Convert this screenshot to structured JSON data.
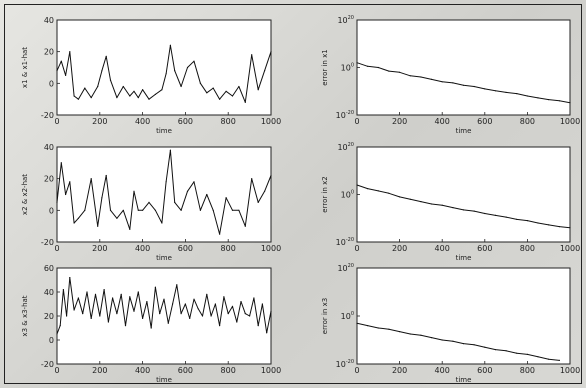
{
  "chart_data": [
    {
      "id": "x1",
      "type": "line",
      "xlabel": "time",
      "ylabel": "x1 & x1-hat",
      "xlim": [
        0,
        1000
      ],
      "ylim": [
        -20,
        40
      ],
      "xticks": [
        "0",
        "200",
        "400",
        "600",
        "800",
        "1000"
      ],
      "yticks": [
        "-20",
        "0",
        "20",
        "40"
      ],
      "x": [
        0,
        20,
        40,
        60,
        80,
        100,
        130,
        160,
        190,
        210,
        230,
        250,
        280,
        310,
        340,
        360,
        380,
        400,
        430,
        460,
        490,
        510,
        530,
        550,
        580,
        610,
        640,
        670,
        700,
        730,
        760,
        790,
        820,
        850,
        880,
        910,
        940,
        970,
        1000
      ],
      "values": [
        8,
        14,
        5,
        20,
        -8,
        -10,
        -3,
        -9,
        -2,
        8,
        17,
        2,
        -9,
        -2,
        -8,
        -5,
        -9,
        -4,
        -10,
        -7,
        -4,
        6,
        24,
        8,
        -2,
        10,
        14,
        0,
        -6,
        -3,
        -10,
        -5,
        -8,
        -2,
        -12,
        18,
        -4,
        8,
        20
      ]
    },
    {
      "id": "x2",
      "type": "line",
      "xlabel": "time",
      "ylabel": "x2 & x2-hat",
      "xlim": [
        0,
        1000
      ],
      "ylim": [
        -20,
        40
      ],
      "xticks": [
        "0",
        "200",
        "400",
        "600",
        "800",
        "1000"
      ],
      "yticks": [
        "-20",
        "0",
        "20",
        "40"
      ],
      "x": [
        0,
        20,
        40,
        60,
        80,
        100,
        130,
        160,
        190,
        210,
        230,
        250,
        280,
        310,
        340,
        360,
        380,
        400,
        430,
        460,
        490,
        510,
        530,
        550,
        580,
        610,
        640,
        670,
        700,
        730,
        760,
        790,
        820,
        850,
        880,
        910,
        940,
        970,
        1000
      ],
      "values": [
        5,
        30,
        10,
        18,
        -8,
        -5,
        0,
        20,
        -10,
        8,
        22,
        0,
        -5,
        0,
        -12,
        12,
        0,
        0,
        5,
        0,
        -8,
        18,
        38,
        5,
        0,
        12,
        18,
        0,
        10,
        0,
        -15,
        8,
        0,
        0,
        -10,
        20,
        5,
        12,
        22
      ]
    },
    {
      "id": "x3",
      "type": "line",
      "xlabel": "time",
      "ylabel": "x3 & x3-hat",
      "xlim": [
        0,
        1000
      ],
      "ylim": [
        -20,
        60
      ],
      "xticks": [
        "0",
        "200",
        "400",
        "600",
        "800",
        "1000"
      ],
      "yticks": [
        "-20",
        "0",
        "20",
        "40",
        "60"
      ],
      "x": [
        0,
        15,
        30,
        45,
        60,
        80,
        100,
        120,
        140,
        160,
        180,
        200,
        220,
        240,
        260,
        280,
        300,
        320,
        340,
        360,
        380,
        400,
        420,
        440,
        460,
        480,
        500,
        520,
        540,
        560,
        580,
        600,
        620,
        640,
        660,
        680,
        700,
        720,
        740,
        760,
        780,
        800,
        820,
        840,
        860,
        880,
        900,
        920,
        940,
        960,
        980,
        1000
      ],
      "values": [
        5,
        12,
        42,
        20,
        52,
        25,
        35,
        22,
        40,
        18,
        38,
        20,
        42,
        15,
        35,
        22,
        38,
        12,
        36,
        24,
        40,
        18,
        32,
        10,
        44,
        22,
        34,
        14,
        30,
        46,
        22,
        30,
        18,
        34,
        26,
        20,
        38,
        20,
        30,
        12,
        36,
        22,
        28,
        15,
        32,
        22,
        20,
        35,
        12,
        30,
        6,
        24
      ]
    },
    {
      "id": "e1",
      "type": "line",
      "xlabel": "time",
      "ylabel": "error in x1",
      "xlim": [
        0,
        1000
      ],
      "ylog": true,
      "ylim_exp": [
        -20,
        20
      ],
      "xticks": [
        "0",
        "200",
        "400",
        "600",
        "800",
        "1000"
      ],
      "yticks": [
        {
          "base": "10",
          "exp": "-20"
        },
        {
          "base": "10",
          "exp": "0"
        },
        {
          "base": "10",
          "exp": "20"
        }
      ],
      "x": [
        0,
        50,
        100,
        150,
        200,
        250,
        300,
        350,
        400,
        450,
        500,
        550,
        600,
        650,
        700,
        750,
        800,
        850,
        900,
        950,
        1000
      ],
      "values": [
        2,
        0.5,
        0,
        -1.5,
        -2,
        -3.5,
        -4,
        -5,
        -6,
        -6.5,
        -7.5,
        -8,
        -9,
        -9.8,
        -10.5,
        -11,
        -12,
        -12.8,
        -13.5,
        -14,
        -14.8
      ]
    },
    {
      "id": "e2",
      "type": "line",
      "xlabel": "time",
      "ylabel": "error in x2",
      "xlim": [
        0,
        1000
      ],
      "ylog": true,
      "ylim_exp": [
        -20,
        20
      ],
      "xticks": [
        "0",
        "200",
        "400",
        "600",
        "800",
        "1000"
      ],
      "yticks": [
        {
          "base": "10",
          "exp": "-20"
        },
        {
          "base": "10",
          "exp": "0"
        },
        {
          "base": "10",
          "exp": "20"
        }
      ],
      "x": [
        0,
        50,
        100,
        150,
        200,
        250,
        300,
        350,
        400,
        450,
        500,
        550,
        600,
        650,
        700,
        750,
        800,
        850,
        900,
        950,
        1000
      ],
      "values": [
        4,
        2.5,
        1.5,
        0.5,
        -1,
        -2,
        -3,
        -4,
        -4.5,
        -5.5,
        -6.5,
        -7,
        -8,
        -8.8,
        -9.5,
        -10.5,
        -11,
        -12,
        -12.8,
        -13.5,
        -14
      ]
    },
    {
      "id": "e3",
      "type": "line",
      "xlabel": "time",
      "ylabel": "error in x3",
      "xlim": [
        0,
        1000
      ],
      "ylog": true,
      "ylim_exp": [
        -20,
        20
      ],
      "xticks": [
        "0",
        "200",
        "400",
        "600",
        "800",
        "1000"
      ],
      "yticks": [
        {
          "base": "10",
          "exp": "-20"
        },
        {
          "base": "10",
          "exp": "0"
        },
        {
          "base": "10",
          "exp": "20"
        }
      ],
      "x": [
        0,
        50,
        100,
        150,
        200,
        250,
        300,
        350,
        400,
        450,
        500,
        550,
        600,
        650,
        700,
        750,
        800,
        850,
        900,
        950
      ],
      "values": [
        -3,
        -4,
        -5,
        -5.5,
        -6.5,
        -7.5,
        -8,
        -9,
        -10,
        -10.5,
        -11.5,
        -12,
        -13,
        -14,
        -14.5,
        -15.5,
        -16,
        -17,
        -18,
        -18.5
      ]
    }
  ]
}
